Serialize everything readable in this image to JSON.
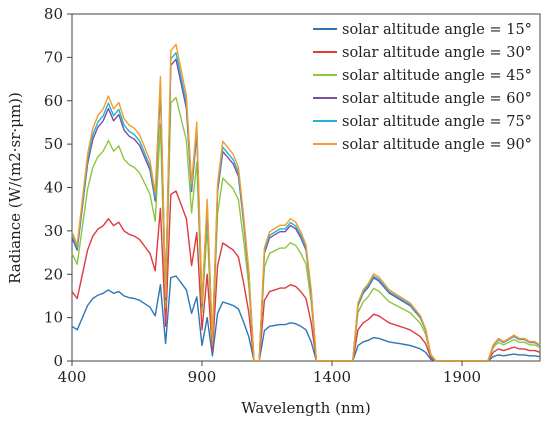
{
  "chart_data": {
    "type": "line",
    "title": "",
    "xlabel": "Wavelength (nm)",
    "ylabel": "Radiance (W/(m2·sr·μm))",
    "xlim": [
      400,
      2200
    ],
    "ylim": [
      0,
      80
    ],
    "xticks": [
      400,
      900,
      1400,
      1900
    ],
    "yticks": [
      0,
      10,
      20,
      30,
      40,
      50,
      60,
      70,
      80
    ],
    "x_tick_labels": [
      "400",
      "900",
      "1400",
      "1900"
    ],
    "y_tick_labels": [
      "0",
      "10",
      "20",
      "30",
      "40",
      "50",
      "60",
      "70",
      "80"
    ],
    "grid": false,
    "legend_position": "top-right",
    "x": [
      400,
      420,
      440,
      460,
      480,
      500,
      520,
      540,
      560,
      580,
      600,
      620,
      640,
      660,
      680,
      700,
      720,
      740,
      760,
      780,
      800,
      820,
      840,
      860,
      880,
      900,
      920,
      940,
      960,
      980,
      1000,
      1020,
      1040,
      1060,
      1080,
      1100,
      1120,
      1140,
      1160,
      1180,
      1200,
      1220,
      1240,
      1260,
      1280,
      1300,
      1320,
      1340,
      1360,
      1380,
      1400,
      1420,
      1440,
      1460,
      1480,
      1500,
      1520,
      1540,
      1560,
      1580,
      1600,
      1620,
      1640,
      1660,
      1680,
      1700,
      1720,
      1740,
      1760,
      1780,
      1800,
      1820,
      1840,
      1860,
      1880,
      1900,
      1920,
      1940,
      1960,
      1980,
      2000,
      2020,
      2040,
      2060,
      2080,
      2100,
      2120,
      2140,
      2160,
      2180,
      2200
    ],
    "shape": [
      0.4,
      0.36,
      0.5,
      0.64,
      0.72,
      0.76,
      0.78,
      0.82,
      0.78,
      0.8,
      0.75,
      0.73,
      0.72,
      0.7,
      0.66,
      0.62,
      0.52,
      0.88,
      0.2,
      0.96,
      0.98,
      0.9,
      0.82,
      0.55,
      0.74,
      0.18,
      0.5,
      0.06,
      0.55,
      0.68,
      0.66,
      0.64,
      0.6,
      0.45,
      0.28,
      0.0,
      0.0,
      0.35,
      0.4,
      0.41,
      0.42,
      0.42,
      0.44,
      0.43,
      0.4,
      0.36,
      0.22,
      0.0,
      0.0,
      0.0,
      0.0,
      0.0,
      0.0,
      0.0,
      0.0,
      0.18,
      0.22,
      0.24,
      0.27,
      0.26,
      0.24,
      0.22,
      0.21,
      0.2,
      0.19,
      0.18,
      0.16,
      0.14,
      0.1,
      0.02,
      0.0,
      0.0,
      0.0,
      0.0,
      0.0,
      0.0,
      0.0,
      0.0,
      0.0,
      0.0,
      0.0,
      0.05,
      0.07,
      0.06,
      0.07,
      0.08,
      0.07,
      0.07,
      0.06,
      0.06,
      0.05
    ],
    "series": [
      {
        "name": "solar altitude angle = 15°",
        "scale": 20,
        "color": "#2E75B6"
      },
      {
        "name": "solar altitude angle = 30°",
        "scale": 40,
        "color": "#E0393E"
      },
      {
        "name": "solar altitude angle = 45°",
        "scale": 62,
        "color": "#8DC63F"
      },
      {
        "name": "solar altitude angle = 60°",
        "scale": 71,
        "color": "#7B4FA0"
      },
      {
        "name": "solar altitude angle = 75°",
        "scale": 72.5,
        "color": "#1FB5D6"
      },
      {
        "name": "solar altitude angle = 90°",
        "scale": 74.5,
        "color": "#F39B2C"
      }
    ]
  }
}
